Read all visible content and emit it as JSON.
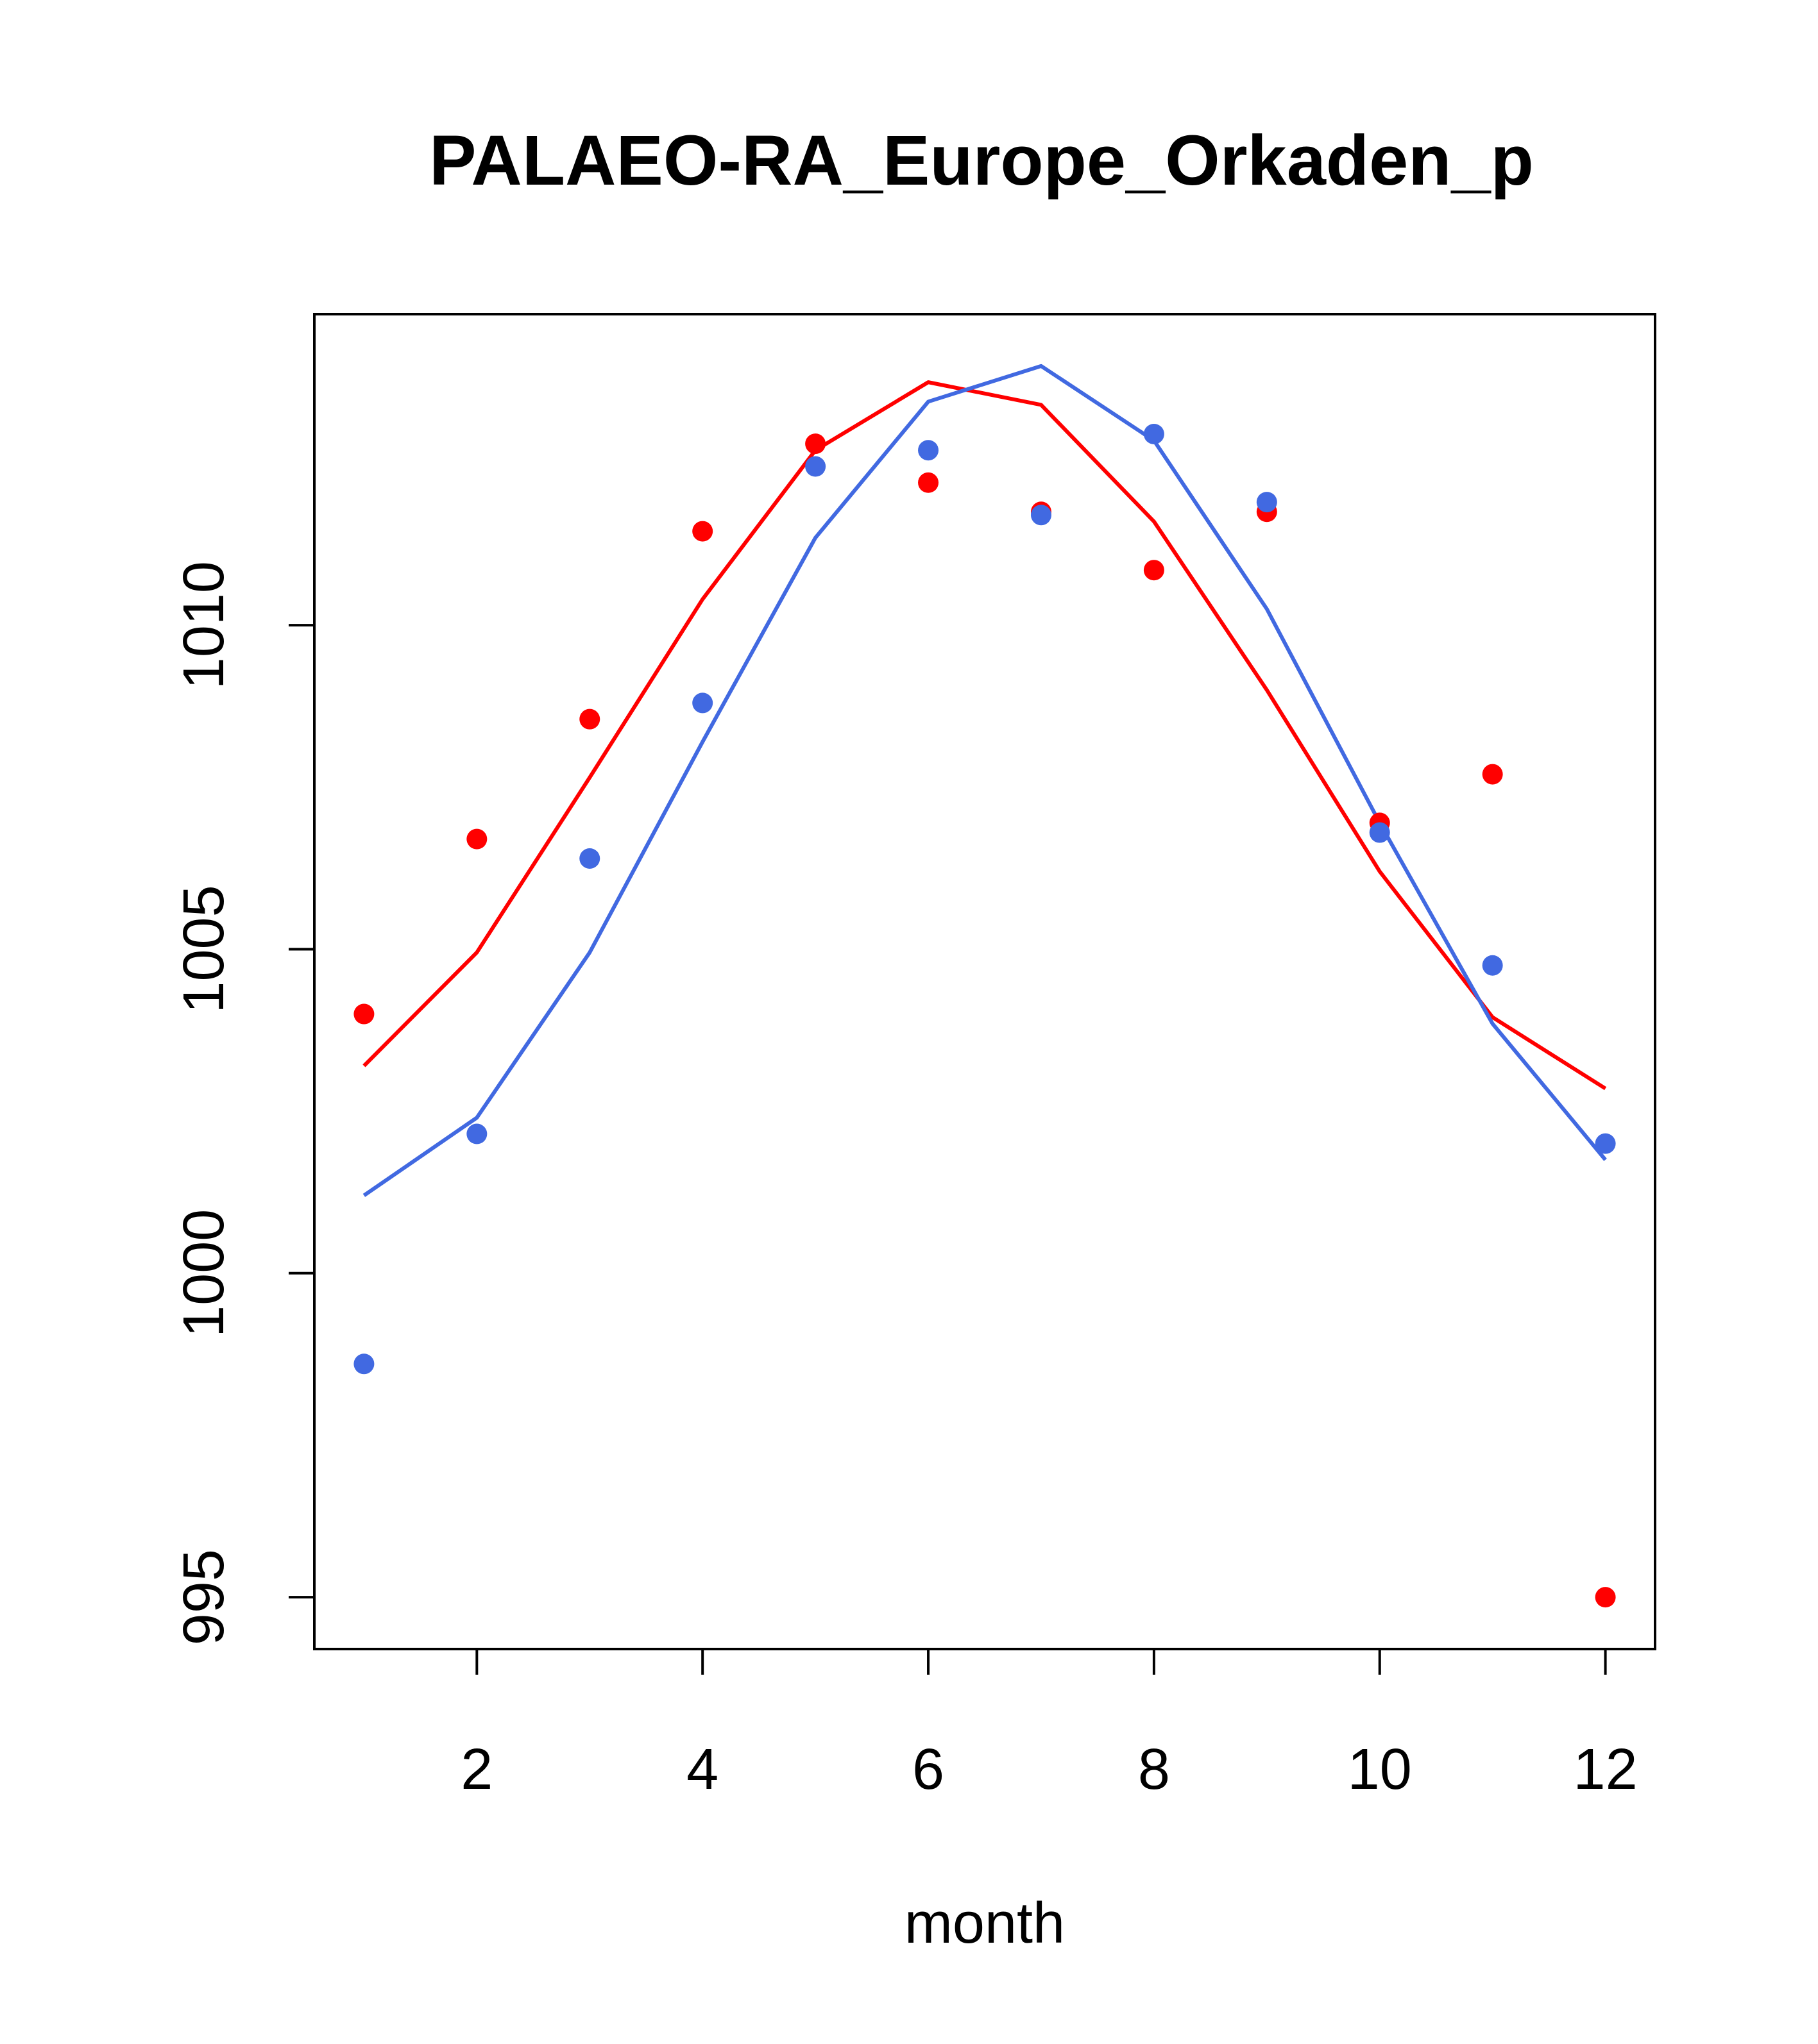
{
  "chart_data": {
    "type": "scatter",
    "title": "PALAEO-RA_Europe_Orkaden_p",
    "xlabel": "month",
    "ylabel": "",
    "xlim": [
      0.56,
      12.44
    ],
    "ylim": [
      994.2,
      1014.8
    ],
    "xticks": [
      2,
      4,
      6,
      8,
      10,
      12
    ],
    "yticks": [
      995,
      1000,
      1005,
      1010
    ],
    "grid": false,
    "legend": "none",
    "colors": {
      "red": "#ff0000",
      "blue": "#4169e1"
    },
    "series": [
      {
        "name": "red-points",
        "kind": "points",
        "color": "#ff0000",
        "x": [
          1,
          2,
          3,
          4,
          5,
          6,
          7,
          8,
          9,
          10,
          11,
          12
        ],
        "values": [
          1004.0,
          1006.7,
          1008.55,
          1011.45,
          1012.8,
          1012.2,
          1011.75,
          1010.85,
          1011.75,
          1006.95,
          1007.7,
          995.0
        ]
      },
      {
        "name": "blue-points",
        "kind": "points",
        "color": "#4169e1",
        "x": [
          1,
          2,
          3,
          4,
          5,
          6,
          7,
          8,
          9,
          10,
          11,
          12
        ],
        "values": [
          998.6,
          1002.15,
          1006.4,
          1008.8,
          1012.45,
          1012.7,
          1011.7,
          1012.95,
          1011.9,
          1006.8,
          1004.75,
          1002.0
        ]
      },
      {
        "name": "red-line",
        "kind": "line",
        "color": "#ff0000",
        "x": [
          1,
          2,
          3,
          4,
          5,
          6,
          7,
          8,
          9,
          10,
          11,
          12
        ],
        "values": [
          1003.2,
          1004.95,
          1007.65,
          1010.4,
          1012.7,
          1013.75,
          1013.4,
          1011.6,
          1009.0,
          1006.2,
          1003.95,
          1002.85
        ]
      },
      {
        "name": "blue-line",
        "kind": "line",
        "color": "#4169e1",
        "x": [
          1,
          2,
          3,
          4,
          5,
          6,
          7,
          8,
          9,
          10,
          11,
          12
        ],
        "values": [
          1001.2,
          1002.4,
          1004.95,
          1008.2,
          1011.35,
          1013.45,
          1014.0,
          1012.85,
          1010.25,
          1006.95,
          1003.85,
          1001.75
        ]
      }
    ]
  }
}
